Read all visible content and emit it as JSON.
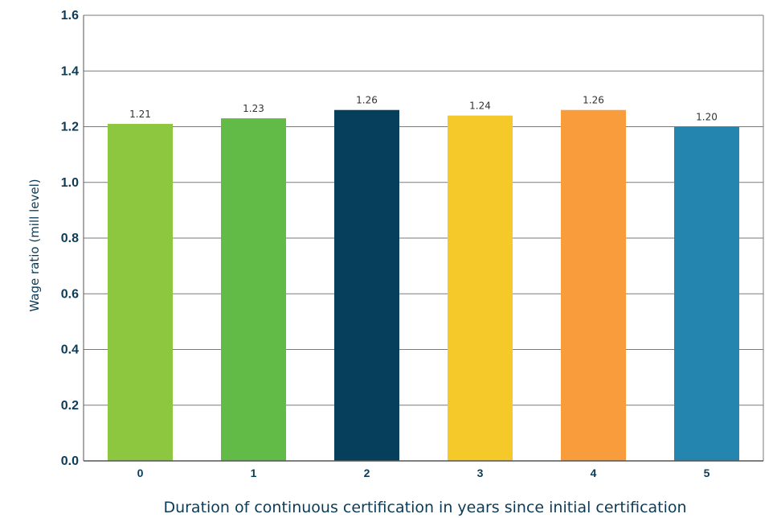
{
  "chart_data": {
    "type": "bar",
    "categories": [
      "0",
      "1",
      "2",
      "3",
      "4",
      "5"
    ],
    "values": [
      1.21,
      1.23,
      1.26,
      1.24,
      1.26,
      1.2
    ],
    "data_labels": [
      "1.21",
      "1.23",
      "1.26",
      "1.24",
      "1.26",
      "1.20"
    ],
    "bar_colors": [
      "#8dc63f",
      "#62bb46",
      "#063f5c",
      "#f5c92a",
      "#f89c3c",
      "#2485ae"
    ],
    "title": "",
    "xlabel": "Duration of continuous certification in years since initial certification",
    "ylabel": "Wage ratio (mill level)",
    "ylim": [
      0.0,
      1.6
    ],
    "yticks": [
      0.0,
      0.2,
      0.4,
      0.6,
      0.8,
      1.0,
      1.2,
      1.4,
      1.6
    ],
    "ytick_labels": [
      "0.0",
      "0.2",
      "0.4",
      "0.6",
      "0.8",
      "1.0",
      "1.2",
      "1.4",
      "1.6"
    ],
    "grid": "horizontal",
    "legend": "none",
    "colors": {
      "axis_text": "#0b3b57",
      "gridline": "#7a7a7a",
      "axis_line": "#555555",
      "data_label": "#333333"
    }
  }
}
